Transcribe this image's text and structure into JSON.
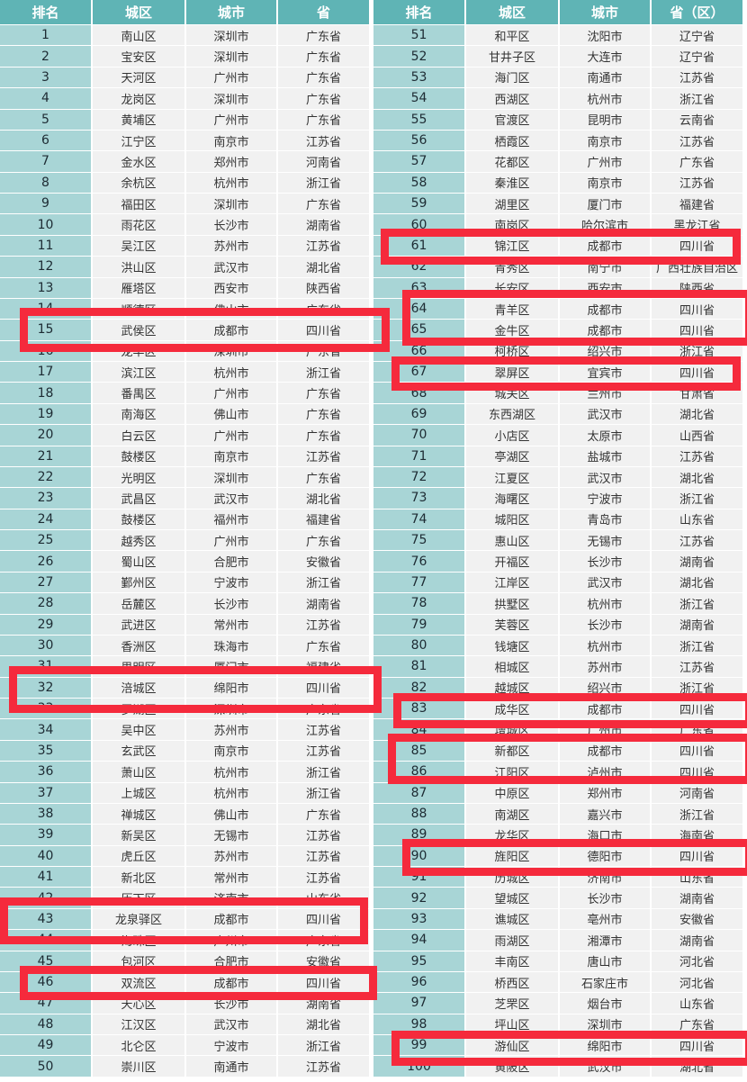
{
  "left_table": {
    "headers": [
      "排名",
      "城区",
      "城市",
      "省"
    ],
    "rows": [
      [
        "1",
        "南山区",
        "深圳市",
        "广东省"
      ],
      [
        "2",
        "宝安区",
        "深圳市",
        "广东省"
      ],
      [
        "3",
        "天河区",
        "广州市",
        "广东省"
      ],
      [
        "4",
        "龙岗区",
        "深圳市",
        "广东省"
      ],
      [
        "5",
        "黄埔区",
        "广州市",
        "广东省"
      ],
      [
        "6",
        "江宁区",
        "南京市",
        "江苏省"
      ],
      [
        "7",
        "金水区",
        "郑州市",
        "河南省"
      ],
      [
        "8",
        "余杭区",
        "杭州市",
        "浙江省"
      ],
      [
        "9",
        "福田区",
        "深圳市",
        "广东省"
      ],
      [
        "10",
        "雨花区",
        "长沙市",
        "湖南省"
      ],
      [
        "11",
        "吴江区",
        "苏州市",
        "江苏省"
      ],
      [
        "12",
        "洪山区",
        "武汉市",
        "湖北省"
      ],
      [
        "13",
        "雁塔区",
        "西安市",
        "陕西省"
      ],
      [
        "14",
        "顺德区",
        "佛山市",
        "广东省"
      ],
      [
        "15",
        "武侯区",
        "成都市",
        "四川省"
      ],
      [
        "16",
        "龙华区",
        "深圳市",
        "广东省"
      ],
      [
        "17",
        "滨江区",
        "杭州市",
        "浙江省"
      ],
      [
        "18",
        "番禺区",
        "广州市",
        "广东省"
      ],
      [
        "19",
        "南海区",
        "佛山市",
        "广东省"
      ],
      [
        "20",
        "白云区",
        "广州市",
        "广东省"
      ],
      [
        "21",
        "鼓楼区",
        "南京市",
        "江苏省"
      ],
      [
        "22",
        "光明区",
        "深圳市",
        "广东省"
      ],
      [
        "23",
        "武昌区",
        "武汉市",
        "湖北省"
      ],
      [
        "24",
        "鼓楼区",
        "福州市",
        "福建省"
      ],
      [
        "25",
        "越秀区",
        "广州市",
        "广东省"
      ],
      [
        "26",
        "蜀山区",
        "合肥市",
        "安徽省"
      ],
      [
        "27",
        "鄞州区",
        "宁波市",
        "浙江省"
      ],
      [
        "28",
        "岳麓区",
        "长沙市",
        "湖南省"
      ],
      [
        "29",
        "武进区",
        "常州市",
        "江苏省"
      ],
      [
        "30",
        "香洲区",
        "珠海市",
        "广东省"
      ],
      [
        "31",
        "思明区",
        "厦门市",
        "福建省"
      ],
      [
        "32",
        "涪城区",
        "绵阳市",
        "四川省"
      ],
      [
        "33",
        "罗湖区",
        "深圳市",
        "广东省"
      ],
      [
        "34",
        "吴中区",
        "苏州市",
        "江苏省"
      ],
      [
        "35",
        "玄武区",
        "南京市",
        "江苏省"
      ],
      [
        "36",
        "萧山区",
        "杭州市",
        "浙江省"
      ],
      [
        "37",
        "上城区",
        "杭州市",
        "浙江省"
      ],
      [
        "38",
        "禅城区",
        "佛山市",
        "广东省"
      ],
      [
        "39",
        "新吴区",
        "无锡市",
        "江苏省"
      ],
      [
        "40",
        "虎丘区",
        "苏州市",
        "江苏省"
      ],
      [
        "41",
        "新北区",
        "常州市",
        "江苏省"
      ],
      [
        "42",
        "历下区",
        "济南市",
        "山东省"
      ],
      [
        "43",
        "龙泉驿区",
        "成都市",
        "四川省"
      ],
      [
        "44",
        "海珠区",
        "广州市",
        "广东省"
      ],
      [
        "45",
        "包河区",
        "合肥市",
        "安徽省"
      ],
      [
        "46",
        "双流区",
        "成都市",
        "四川省"
      ],
      [
        "47",
        "天心区",
        "长沙市",
        "湖南省"
      ],
      [
        "48",
        "江汉区",
        "武汉市",
        "湖北省"
      ],
      [
        "49",
        "北仑区",
        "宁波市",
        "浙江省"
      ],
      [
        "50",
        "崇川区",
        "南通市",
        "江苏省"
      ]
    ]
  },
  "right_table": {
    "headers": [
      "排名",
      "城区",
      "城市",
      "省（区）"
    ],
    "rows": [
      [
        "51",
        "和平区",
        "沈阳市",
        "辽宁省"
      ],
      [
        "52",
        "甘井子区",
        "大连市",
        "辽宁省"
      ],
      [
        "53",
        "海门区",
        "南通市",
        "江苏省"
      ],
      [
        "54",
        "西湖区",
        "杭州市",
        "浙江省"
      ],
      [
        "55",
        "官渡区",
        "昆明市",
        "云南省"
      ],
      [
        "56",
        "栖霞区",
        "南京市",
        "江苏省"
      ],
      [
        "57",
        "花都区",
        "广州市",
        "广东省"
      ],
      [
        "58",
        "秦淮区",
        "南京市",
        "江苏省"
      ],
      [
        "59",
        "湖里区",
        "厦门市",
        "福建省"
      ],
      [
        "60",
        "南岗区",
        "哈尔滨市",
        "黑龙江省"
      ],
      [
        "61",
        "锦江区",
        "成都市",
        "四川省"
      ],
      [
        "62",
        "青秀区",
        "南宁市",
        "广西壮族自治区"
      ],
      [
        "63",
        "长安区",
        "西安市",
        "陕西省"
      ],
      [
        "64",
        "青羊区",
        "成都市",
        "四川省"
      ],
      [
        "65",
        "金牛区",
        "成都市",
        "四川省"
      ],
      [
        "66",
        "柯桥区",
        "绍兴市",
        "浙江省"
      ],
      [
        "67",
        "翠屏区",
        "宜宾市",
        "四川省"
      ],
      [
        "68",
        "城关区",
        "兰州市",
        "甘肃省"
      ],
      [
        "69",
        "东西湖区",
        "武汉市",
        "湖北省"
      ],
      [
        "70",
        "小店区",
        "太原市",
        "山西省"
      ],
      [
        "71",
        "亭湖区",
        "盐城市",
        "江苏省"
      ],
      [
        "72",
        "江夏区",
        "武汉市",
        "湖北省"
      ],
      [
        "73",
        "海曙区",
        "宁波市",
        "浙江省"
      ],
      [
        "74",
        "城阳区",
        "青岛市",
        "山东省"
      ],
      [
        "75",
        "惠山区",
        "无锡市",
        "江苏省"
      ],
      [
        "76",
        "开福区",
        "长沙市",
        "湖南省"
      ],
      [
        "77",
        "江岸区",
        "武汉市",
        "湖北省"
      ],
      [
        "78",
        "拱墅区",
        "杭州市",
        "浙江省"
      ],
      [
        "79",
        "芙蓉区",
        "长沙市",
        "湖南省"
      ],
      [
        "80",
        "钱塘区",
        "杭州市",
        "浙江省"
      ],
      [
        "81",
        "相城区",
        "苏州市",
        "江苏省"
      ],
      [
        "82",
        "越城区",
        "绍兴市",
        "浙江省"
      ],
      [
        "83",
        "成华区",
        "成都市",
        "四川省"
      ],
      [
        "84",
        "增城区",
        "广州市",
        "广东省"
      ],
      [
        "85",
        "新都区",
        "成都市",
        "四川省"
      ],
      [
        "86",
        "江阳区",
        "泸州市",
        "四川省"
      ],
      [
        "87",
        "中原区",
        "郑州市",
        "河南省"
      ],
      [
        "88",
        "南湖区",
        "嘉兴市",
        "浙江省"
      ],
      [
        "89",
        "龙华区",
        "海口市",
        "海南省"
      ],
      [
        "90",
        "旌阳区",
        "德阳市",
        "四川省"
      ],
      [
        "91",
        "历城区",
        "济南市",
        "山东省"
      ],
      [
        "92",
        "望城区",
        "长沙市",
        "湖南省"
      ],
      [
        "93",
        "谯城区",
        "亳州市",
        "安徽省"
      ],
      [
        "94",
        "雨湖区",
        "湘潭市",
        "湖南省"
      ],
      [
        "95",
        "丰南区",
        "唐山市",
        "河北省"
      ],
      [
        "96",
        "桥西区",
        "石家庄市",
        "河北省"
      ],
      [
        "97",
        "芝罘区",
        "烟台市",
        "山东省"
      ],
      [
        "98",
        "坪山区",
        "深圳市",
        "广东省"
      ],
      [
        "99",
        "游仙区",
        "绵阳市",
        "四川省"
      ],
      [
        "100",
        "黄陂区",
        "武汉市",
        "湖北省"
      ]
    ]
  },
  "highlighted_ranks": [
    "15",
    "32",
    "43",
    "46",
    "61",
    "64",
    "65",
    "67",
    "83",
    "85",
    "86",
    "90",
    "99"
  ],
  "colors": {
    "header": "#5fb4b5",
    "rank_column": "#a8d5d6",
    "cell": "#f1f1f1",
    "highlight": "#f52a3c"
  }
}
